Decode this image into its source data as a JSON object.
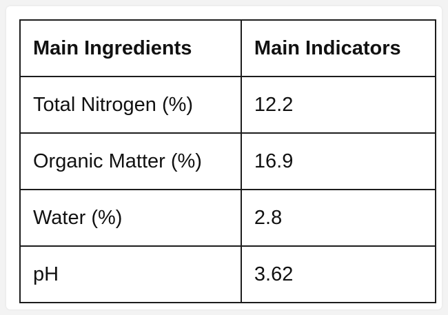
{
  "table": {
    "headers": [
      "Main Ingredients",
      "Main Indicators"
    ],
    "rows": [
      [
        "Total Nitrogen (%)",
        "12.2"
      ],
      [
        "Organic Matter (%)",
        "16.9"
      ],
      [
        "Water (%)",
        "2.8"
      ],
      [
        "pH",
        "3.62"
      ]
    ]
  }
}
